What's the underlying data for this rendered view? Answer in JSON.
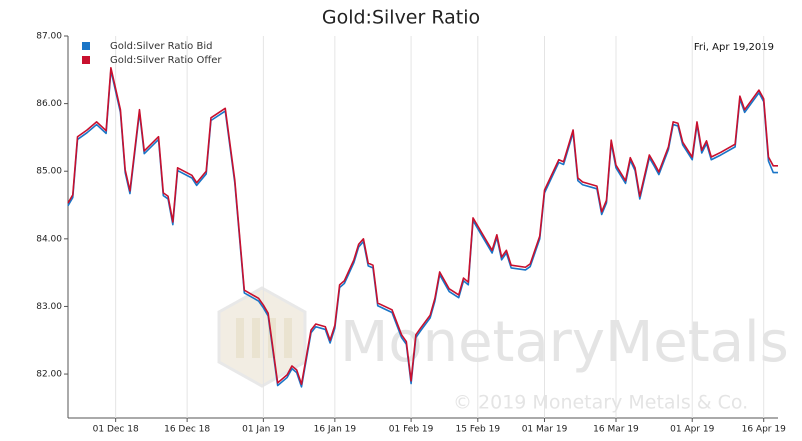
{
  "chart_data": {
    "type": "line",
    "title": "Gold:Silver Ratio",
    "annotation": "Fri, Apr 19,2019",
    "watermark": {
      "logo": "MonetaryMetals",
      "copyright": "© 2019 Monetary Metals & Co."
    },
    "x": [
      "2018-11-21",
      "2018-11-22",
      "2018-11-23",
      "2018-11-25",
      "2018-11-27",
      "2018-11-29",
      "2018-11-30",
      "2018-12-02",
      "2018-12-03",
      "2018-12-04",
      "2018-12-06",
      "2018-12-07",
      "2018-12-10",
      "2018-12-11",
      "2018-12-12",
      "2018-12-13",
      "2018-12-14",
      "2018-12-17",
      "2018-12-18",
      "2018-12-20",
      "2018-12-21",
      "2018-12-24",
      "2018-12-26",
      "2018-12-28",
      "2018-12-31",
      "2019-01-01",
      "2019-01-02",
      "2019-01-04",
      "2019-01-06",
      "2019-01-07",
      "2019-01-08",
      "2019-01-09",
      "2019-01-11",
      "2019-01-12",
      "2019-01-14",
      "2019-01-15",
      "2019-01-16",
      "2019-01-17",
      "2019-01-18",
      "2019-01-20",
      "2019-01-21",
      "2019-01-22",
      "2019-01-23",
      "2019-01-24",
      "2019-01-25",
      "2019-01-28",
      "2019-01-30",
      "2019-01-31",
      "2019-02-01",
      "2019-02-02",
      "2019-02-03",
      "2019-02-05",
      "2019-02-06",
      "2019-02-07",
      "2019-02-09",
      "2019-02-11",
      "2019-02-12",
      "2019-02-13",
      "2019-02-14",
      "2019-02-16",
      "2019-02-18",
      "2019-02-19",
      "2019-02-20",
      "2019-02-21",
      "2019-02-22",
      "2019-02-25",
      "2019-02-26",
      "2019-02-28",
      "2019-03-01",
      "2019-03-02",
      "2019-03-04",
      "2019-03-05",
      "2019-03-07",
      "2019-03-08",
      "2019-03-09",
      "2019-03-12",
      "2019-03-13",
      "2019-03-14",
      "2019-03-15",
      "2019-03-16",
      "2019-03-18",
      "2019-03-19",
      "2019-03-20",
      "2019-03-21",
      "2019-03-23",
      "2019-03-24",
      "2019-03-25",
      "2019-03-27",
      "2019-03-28",
      "2019-03-29",
      "2019-03-30",
      "2019-04-01",
      "2019-04-02",
      "2019-04-03",
      "2019-04-04",
      "2019-04-05",
      "2019-04-07",
      "2019-04-10",
      "2019-04-11",
      "2019-04-12",
      "2019-04-15",
      "2019-04-16",
      "2019-04-17",
      "2019-04-18",
      "2019-04-19"
    ],
    "series": [
      {
        "name": "Gold:Silver Ratio Bid",
        "color": "#1a75c7",
        "values": [
          84.49,
          84.61,
          85.47,
          85.57,
          85.69,
          85.56,
          86.49,
          85.87,
          84.98,
          84.67,
          85.87,
          85.26,
          85.47,
          84.64,
          84.59,
          84.21,
          85.01,
          84.9,
          84.79,
          84.96,
          85.75,
          85.89,
          84.83,
          83.2,
          83.08,
          82.98,
          82.86,
          81.83,
          81.95,
          82.08,
          82.02,
          81.81,
          82.61,
          82.7,
          82.66,
          82.46,
          82.68,
          83.28,
          83.34,
          83.65,
          83.88,
          83.96,
          83.6,
          83.57,
          83.01,
          82.91,
          82.54,
          82.44,
          81.86,
          82.54,
          82.64,
          82.83,
          83.08,
          83.47,
          83.22,
          83.13,
          83.38,
          83.32,
          84.27,
          84.03,
          83.79,
          84.02,
          83.69,
          83.79,
          83.57,
          83.54,
          83.59,
          84.0,
          84.68,
          84.83,
          85.13,
          85.1,
          85.57,
          84.86,
          84.8,
          84.74,
          84.36,
          84.53,
          85.42,
          85.05,
          84.82,
          85.16,
          85.01,
          84.59,
          85.2,
          85.08,
          84.95,
          85.32,
          85.69,
          85.67,
          85.39,
          85.17,
          85.69,
          85.27,
          85.41,
          85.17,
          85.24,
          85.36,
          86.07,
          85.87,
          86.16,
          86.03,
          85.15,
          84.98,
          84.98
        ]
      },
      {
        "name": "Gold:Silver Ratio Offer",
        "color": "#c8102e",
        "values": [
          84.53,
          84.65,
          85.51,
          85.61,
          85.73,
          85.6,
          86.53,
          85.91,
          85.02,
          84.71,
          85.91,
          85.3,
          85.51,
          84.68,
          84.63,
          84.25,
          85.05,
          84.94,
          84.83,
          85.0,
          85.79,
          85.93,
          84.87,
          83.24,
          83.12,
          83.02,
          82.9,
          81.87,
          81.99,
          82.12,
          82.06,
          81.85,
          82.65,
          82.74,
          82.7,
          82.5,
          82.72,
          83.32,
          83.38,
          83.69,
          83.92,
          84.0,
          83.64,
          83.61,
          83.05,
          82.95,
          82.58,
          82.48,
          81.9,
          82.58,
          82.68,
          82.87,
          83.12,
          83.51,
          83.26,
          83.17,
          83.42,
          83.36,
          84.31,
          84.07,
          83.83,
          84.06,
          83.73,
          83.83,
          83.61,
          83.58,
          83.63,
          84.04,
          84.72,
          84.87,
          85.17,
          85.14,
          85.61,
          84.9,
          84.84,
          84.78,
          84.4,
          84.57,
          85.46,
          85.09,
          84.86,
          85.2,
          85.05,
          84.63,
          85.24,
          85.12,
          84.99,
          85.36,
          85.73,
          85.71,
          85.43,
          85.21,
          85.73,
          85.31,
          85.45,
          85.21,
          85.28,
          85.4,
          86.11,
          85.91,
          86.2,
          86.07,
          85.21,
          85.08,
          85.08
        ]
      }
    ],
    "xlim": [
      "2018-11-21",
      "2019-04-19"
    ],
    "xticks": [
      {
        "value": "2018-12-01",
        "label": "01 Dec 18"
      },
      {
        "value": "2018-12-16",
        "label": "16 Dec 18"
      },
      {
        "value": "2019-01-01",
        "label": "01 Jan 19"
      },
      {
        "value": "2019-01-16",
        "label": "16 Jan 19"
      },
      {
        "value": "2019-02-01",
        "label": "01 Feb 19"
      },
      {
        "value": "2019-02-15",
        "label": "15 Feb 19"
      },
      {
        "value": "2019-03-01",
        "label": "01 Mar 19"
      },
      {
        "value": "2019-03-16",
        "label": "16 Mar 19"
      },
      {
        "value": "2019-04-01",
        "label": "01 Apr 19"
      },
      {
        "value": "2019-04-16",
        "label": "16 Apr 19"
      }
    ],
    "ylim": [
      81.35,
      87
    ],
    "yticks": [
      {
        "value": 82,
        "label": "82.00"
      },
      {
        "value": 83,
        "label": "83.00"
      },
      {
        "value": 84,
        "label": "84.00"
      },
      {
        "value": 85,
        "label": "85.00"
      },
      {
        "value": 86,
        "label": "86.00"
      },
      {
        "value": 87,
        "label": "87.00"
      }
    ],
    "grid": "x",
    "legend": "top-left"
  }
}
